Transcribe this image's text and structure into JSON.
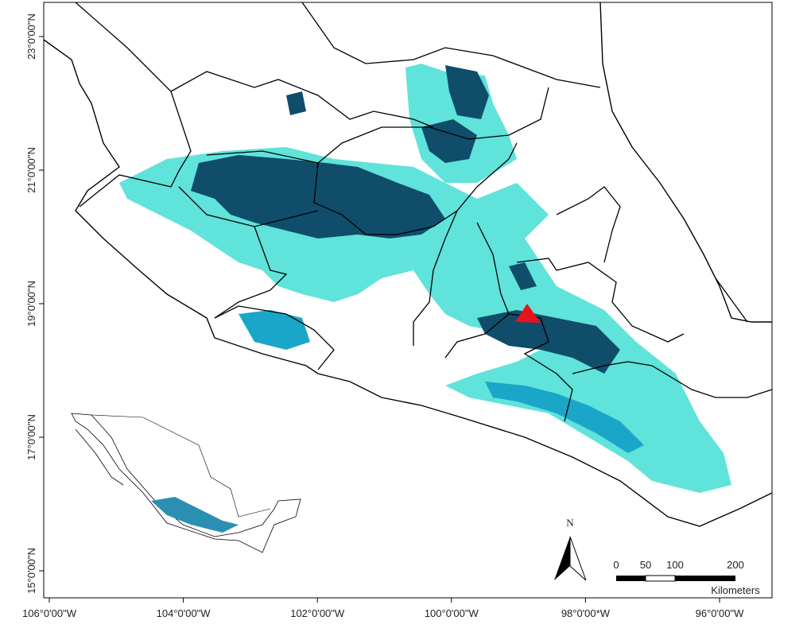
{
  "map": {
    "lon_ticks": [
      {
        "value": -106,
        "label": "106°0'00\"W"
      },
      {
        "value": -104,
        "label": "104°0'00\"W"
      },
      {
        "value": -102,
        "label": "102°0'00\"W"
      },
      {
        "value": -100,
        "label": "100°0'00\"W"
      },
      {
        "value": -98,
        "label": "98°0'00*W"
      },
      {
        "value": -96,
        "label": "96°0'00\"W"
      }
    ],
    "lat_ticks": [
      {
        "value": 23,
        "label": "23°0'00\"N"
      },
      {
        "value": 21,
        "label": "21°0'00\"N"
      },
      {
        "value": 19,
        "label": "19°0'00\"N"
      },
      {
        "value": 17,
        "label": "17°0'00\"N"
      },
      {
        "value": 15,
        "label": "15°0'00\"N"
      }
    ],
    "north_label": "N",
    "scale_bar": {
      "labels": [
        "0",
        "50",
        "100",
        "200"
      ],
      "unit": "Kilometers"
    }
  }
}
